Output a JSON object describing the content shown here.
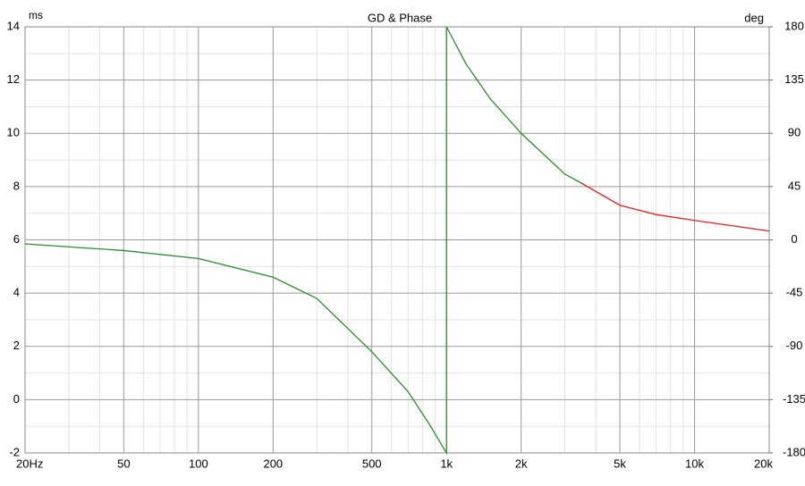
{
  "chart_data": {
    "type": "line",
    "title": "GD & Phase",
    "ylabel": "ms",
    "y2label": "deg",
    "xscale": "log",
    "grid": true,
    "xlim": [
      20,
      20000
    ],
    "xticks": [
      {
        "value": 20,
        "label": "20Hz"
      },
      50,
      100,
      200,
      500,
      {
        "value": 1000,
        "label": "1k"
      },
      {
        "value": 2000,
        "label": "2k"
      },
      {
        "value": 5000,
        "label": "5k"
      },
      {
        "value": 10000,
        "label": "10k"
      },
      {
        "value": 20000,
        "label": "20k"
      }
    ],
    "x_minor_ticks": [
      30,
      40,
      60,
      70,
      80,
      90,
      300,
      400,
      600,
      700,
      800,
      900,
      3000,
      4000,
      6000,
      7000,
      8000,
      9000
    ],
    "ylim": [
      -2,
      14
    ],
    "yticks": [
      -2,
      0,
      2,
      4,
      6,
      8,
      10,
      12,
      14
    ],
    "y_minor_ticks": [
      -1,
      1,
      3,
      5,
      7,
      9,
      11,
      13
    ],
    "y2lim": [
      -180,
      180
    ],
    "y2ticks": [
      -180,
      -135,
      -90,
      -45,
      0,
      45,
      90,
      135,
      180
    ],
    "series": [
      {
        "color": "#2e8b2e",
        "x": [
          20,
          50,
          100,
          200,
          300,
          500,
          700,
          850,
          1000,
          1000,
          1200,
          1500,
          2000,
          3000,
          3500
        ],
        "values": [
          5.85,
          5.6,
          5.3,
          4.6,
          3.8,
          1.8,
          0.3,
          -0.9,
          -2,
          14,
          12.6,
          11.3,
          10,
          8.47,
          8.13
        ]
      },
      {
        "color": "#e82020",
        "x": [
          3500,
          5000,
          7000,
          10000,
          15000,
          20000
        ],
        "values": [
          8.13,
          7.3,
          6.95,
          6.73,
          6.5,
          6.33
        ]
      }
    ]
  }
}
